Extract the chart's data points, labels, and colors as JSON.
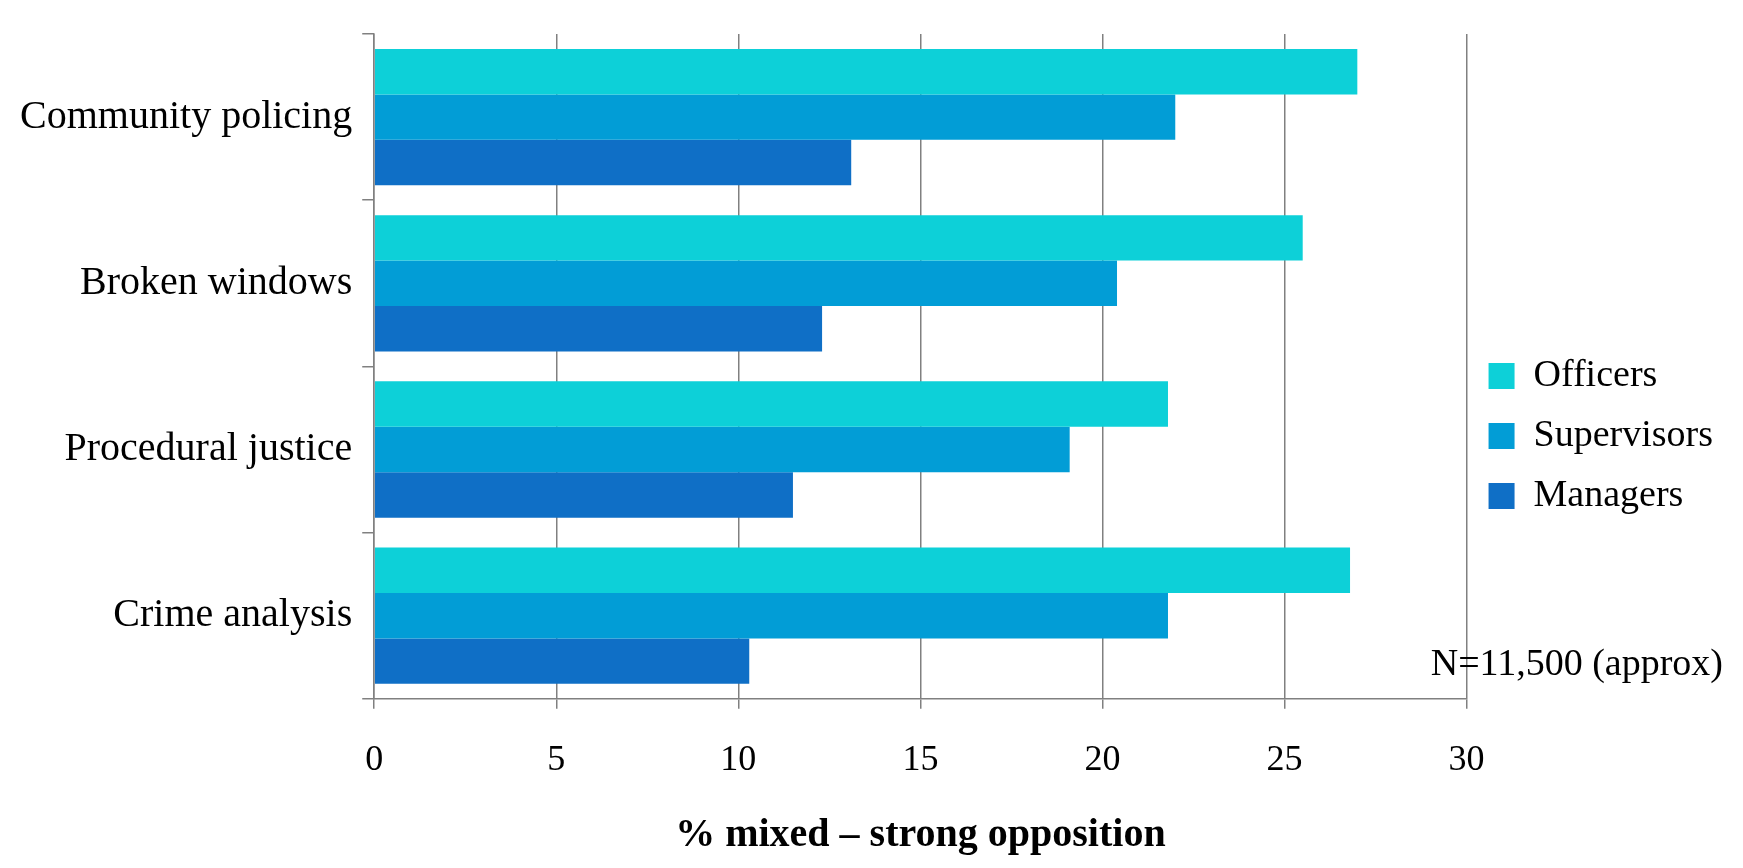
{
  "chart_data": {
    "type": "bar",
    "orientation": "horizontal",
    "xlabel": "% mixed – strong opposition",
    "categories": [
      "Community policing",
      "Broken windows",
      "Procedural justice",
      "Crime analysis"
    ],
    "series": [
      {
        "name": "Officers",
        "color": "#0dd0d8",
        "values": [
          27.0,
          25.5,
          21.8,
          26.8
        ]
      },
      {
        "name": "Supervisors",
        "color": "#029dd6",
        "values": [
          22.0,
          20.4,
          19.1,
          21.8
        ]
      },
      {
        "name": "Managers",
        "color": "#0f6fc6",
        "values": [
          13.1,
          12.3,
          11.5,
          10.3
        ]
      }
    ],
    "xlim": [
      0,
      30
    ],
    "xticks": [
      0,
      5,
      10,
      15,
      20,
      25,
      30
    ],
    "grid": "x",
    "legend": "right",
    "annotations": [
      "N=11,500 (approx)"
    ]
  }
}
